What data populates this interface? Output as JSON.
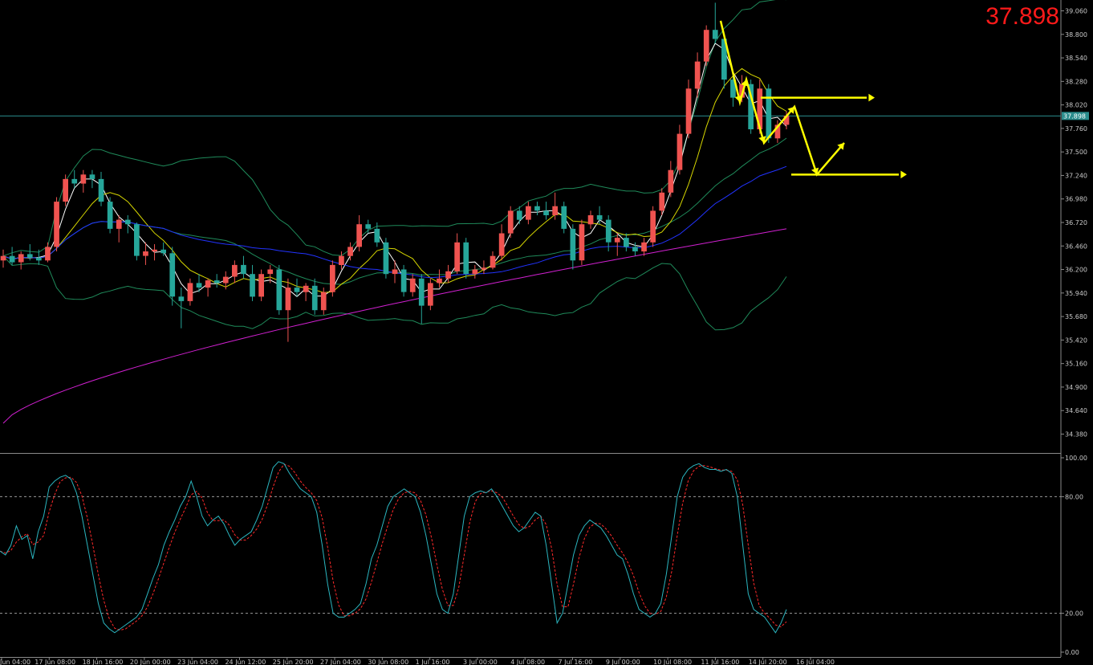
{
  "symbol_price": "37.898",
  "colors": {
    "background": "#000000",
    "bull_candle": "#ef5350",
    "bear_candle": "#26a69a",
    "bollinger": "#1f8a5a",
    "ma_fast": "#ffffff",
    "ma_mid": "#d6d600",
    "ma_blue": "#2233ff",
    "ma_magenta": "#d020d0",
    "stoch_main": "#2bb6c0",
    "stoch_signal": "#ff2a2a",
    "annotation": "#ffff00",
    "price_line": "#2a8c8c"
  },
  "chart_data": [
    {
      "type": "candlestick",
      "price_label": "37.898",
      "current_price": 37.898,
      "ylim": [
        34.18,
        39.18
      ],
      "y_ticks": [
        "39.060",
        "38.800",
        "38.540",
        "38.280",
        "38.020",
        "37.760",
        "37.500",
        "37.240",
        "36.980",
        "36.720",
        "36.460",
        "36.200",
        "35.940",
        "35.680",
        "35.420",
        "35.160",
        "34.900",
        "34.640",
        "34.380"
      ],
      "x_ticks": [
        "Jun 04:00",
        "17 Jun 08:00",
        "18 Jun 16:00",
        "20 Jun 00:00",
        "23 Jun 04:00",
        "24 Jun 12:00",
        "25 Jun 20:00",
        "27 Jun 04:00",
        "30 Jun 08:00",
        "1 Jul 16:00",
        "3 Jul 00:00",
        "4 Jul 08:00",
        "7 Jul 16:00",
        "9 Jul 00:00",
        "10 Jul 08:00",
        "11 Jul 16:00",
        "14 Jul 20:00",
        "16 Jul 04:00"
      ],
      "bars": [
        {
          "o": 36.3,
          "h": 36.42,
          "l": 36.22,
          "c": 36.35
        },
        {
          "o": 36.35,
          "h": 36.45,
          "l": 36.25,
          "c": 36.28
        },
        {
          "o": 36.28,
          "h": 36.4,
          "l": 36.2,
          "c": 36.37
        },
        {
          "o": 36.37,
          "h": 36.48,
          "l": 36.3,
          "c": 36.33
        },
        {
          "o": 36.33,
          "h": 36.42,
          "l": 36.25,
          "c": 36.3
        },
        {
          "o": 36.3,
          "h": 36.5,
          "l": 36.28,
          "c": 36.45
        },
        {
          "o": 36.45,
          "h": 37.0,
          "l": 36.4,
          "c": 36.95
        },
        {
          "o": 36.95,
          "h": 37.25,
          "l": 36.9,
          "c": 37.2
        },
        {
          "o": 37.2,
          "h": 37.3,
          "l": 37.1,
          "c": 37.15
        },
        {
          "o": 37.15,
          "h": 37.3,
          "l": 37.05,
          "c": 37.25
        },
        {
          "o": 37.25,
          "h": 37.3,
          "l": 37.1,
          "c": 37.2
        },
        {
          "o": 37.2,
          "h": 37.28,
          "l": 36.9,
          "c": 36.95
        },
        {
          "o": 36.95,
          "h": 37.0,
          "l": 36.6,
          "c": 36.65
        },
        {
          "o": 36.65,
          "h": 36.8,
          "l": 36.5,
          "c": 36.75
        },
        {
          "o": 36.75,
          "h": 36.8,
          "l": 36.6,
          "c": 36.7
        },
        {
          "o": 36.7,
          "h": 36.72,
          "l": 36.3,
          "c": 36.35
        },
        {
          "o": 36.35,
          "h": 36.5,
          "l": 36.25,
          "c": 36.4
        },
        {
          "o": 36.4,
          "h": 36.48,
          "l": 36.3,
          "c": 36.42
        },
        {
          "o": 36.42,
          "h": 36.5,
          "l": 36.35,
          "c": 36.38
        },
        {
          "o": 36.38,
          "h": 36.45,
          "l": 35.8,
          "c": 35.9
        },
        {
          "o": 35.9,
          "h": 36.0,
          "l": 35.55,
          "c": 35.85
        },
        {
          "o": 35.85,
          "h": 36.1,
          "l": 35.8,
          "c": 36.05
        },
        {
          "o": 36.05,
          "h": 36.15,
          "l": 35.95,
          "c": 36.0
        },
        {
          "o": 36.0,
          "h": 36.1,
          "l": 35.9,
          "c": 36.08
        },
        {
          "o": 36.08,
          "h": 36.15,
          "l": 36.0,
          "c": 36.05
        },
        {
          "o": 36.05,
          "h": 36.18,
          "l": 35.98,
          "c": 36.12
        },
        {
          "o": 36.12,
          "h": 36.3,
          "l": 36.05,
          "c": 36.25
        },
        {
          "o": 36.25,
          "h": 36.35,
          "l": 36.1,
          "c": 36.15
        },
        {
          "o": 36.15,
          "h": 36.25,
          "l": 35.85,
          "c": 35.9
        },
        {
          "o": 35.9,
          "h": 36.2,
          "l": 35.85,
          "c": 36.15
        },
        {
          "o": 36.15,
          "h": 36.25,
          "l": 36.05,
          "c": 36.2
        },
        {
          "o": 36.2,
          "h": 36.25,
          "l": 35.7,
          "c": 35.75
        },
        {
          "o": 35.75,
          "h": 36.1,
          "l": 35.4,
          "c": 36.0
        },
        {
          "o": 36.0,
          "h": 36.1,
          "l": 35.9,
          "c": 35.95
        },
        {
          "o": 35.95,
          "h": 36.05,
          "l": 35.85,
          "c": 36.02
        },
        {
          "o": 36.02,
          "h": 36.1,
          "l": 35.7,
          "c": 35.75
        },
        {
          "o": 35.75,
          "h": 36.0,
          "l": 35.7,
          "c": 35.95
        },
        {
          "o": 35.95,
          "h": 36.3,
          "l": 35.9,
          "c": 36.25
        },
        {
          "o": 36.25,
          "h": 36.4,
          "l": 36.2,
          "c": 36.35
        },
        {
          "o": 36.35,
          "h": 36.5,
          "l": 36.3,
          "c": 36.45
        },
        {
          "o": 36.45,
          "h": 36.8,
          "l": 36.4,
          "c": 36.7
        },
        {
          "o": 36.7,
          "h": 36.75,
          "l": 36.6,
          "c": 36.65
        },
        {
          "o": 36.65,
          "h": 36.72,
          "l": 36.45,
          "c": 36.5
        },
        {
          "o": 36.5,
          "h": 36.55,
          "l": 36.1,
          "c": 36.15
        },
        {
          "o": 36.15,
          "h": 36.3,
          "l": 36.05,
          "c": 36.2
        },
        {
          "o": 36.2,
          "h": 36.25,
          "l": 35.9,
          "c": 35.95
        },
        {
          "o": 35.95,
          "h": 36.15,
          "l": 35.9,
          "c": 36.1
        },
        {
          "o": 36.1,
          "h": 36.15,
          "l": 35.6,
          "c": 35.8
        },
        {
          "o": 35.8,
          "h": 36.1,
          "l": 35.75,
          "c": 36.05
        },
        {
          "o": 36.05,
          "h": 36.2,
          "l": 36.0,
          "c": 36.1
        },
        {
          "o": 36.1,
          "h": 36.25,
          "l": 36.05,
          "c": 36.18
        },
        {
          "o": 36.18,
          "h": 36.6,
          "l": 36.15,
          "c": 36.5
        },
        {
          "o": 36.5,
          "h": 36.55,
          "l": 36.1,
          "c": 36.15
        },
        {
          "o": 36.15,
          "h": 36.25,
          "l": 36.1,
          "c": 36.2
        },
        {
          "o": 36.2,
          "h": 36.3,
          "l": 36.15,
          "c": 36.22
        },
        {
          "o": 36.22,
          "h": 36.4,
          "l": 36.2,
          "c": 36.35
        },
        {
          "o": 36.35,
          "h": 36.7,
          "l": 36.3,
          "c": 36.6
        },
        {
          "o": 36.6,
          "h": 36.9,
          "l": 36.55,
          "c": 36.85
        },
        {
          "o": 36.85,
          "h": 36.9,
          "l": 36.7,
          "c": 36.75
        },
        {
          "o": 36.75,
          "h": 36.95,
          "l": 36.7,
          "c": 36.9
        },
        {
          "o": 36.9,
          "h": 36.95,
          "l": 36.8,
          "c": 36.85
        },
        {
          "o": 36.85,
          "h": 36.95,
          "l": 36.75,
          "c": 36.8
        },
        {
          "o": 36.8,
          "h": 37.05,
          "l": 36.75,
          "c": 36.9
        },
        {
          "o": 36.9,
          "h": 36.95,
          "l": 36.6,
          "c": 36.65
        },
        {
          "o": 36.65,
          "h": 36.7,
          "l": 36.2,
          "c": 36.3
        },
        {
          "o": 36.3,
          "h": 36.75,
          "l": 36.25,
          "c": 36.7
        },
        {
          "o": 36.7,
          "h": 36.85,
          "l": 36.65,
          "c": 36.8
        },
        {
          "o": 36.8,
          "h": 36.9,
          "l": 36.7,
          "c": 36.75
        },
        {
          "o": 36.75,
          "h": 36.8,
          "l": 36.4,
          "c": 36.5
        },
        {
          "o": 36.5,
          "h": 36.6,
          "l": 36.35,
          "c": 36.55
        },
        {
          "o": 36.55,
          "h": 36.6,
          "l": 36.4,
          "c": 36.45
        },
        {
          "o": 36.45,
          "h": 36.5,
          "l": 36.35,
          "c": 36.4
        },
        {
          "o": 36.4,
          "h": 36.55,
          "l": 36.35,
          "c": 36.5
        },
        {
          "o": 36.5,
          "h": 36.9,
          "l": 36.45,
          "c": 36.85
        },
        {
          "o": 36.85,
          "h": 37.1,
          "l": 36.8,
          "c": 37.05
        },
        {
          "o": 37.05,
          "h": 37.4,
          "l": 37.0,
          "c": 37.3
        },
        {
          "o": 37.3,
          "h": 37.8,
          "l": 37.25,
          "c": 37.7
        },
        {
          "o": 37.7,
          "h": 38.3,
          "l": 37.65,
          "c": 38.2
        },
        {
          "o": 38.2,
          "h": 38.6,
          "l": 38.1,
          "c": 38.5
        },
        {
          "o": 38.5,
          "h": 38.9,
          "l": 38.45,
          "c": 38.85
        },
        {
          "o": 38.85,
          "h": 39.15,
          "l": 38.7,
          "c": 38.75
        },
        {
          "o": 38.75,
          "h": 38.8,
          "l": 38.2,
          "c": 38.3
        },
        {
          "o": 38.3,
          "h": 38.35,
          "l": 38.0,
          "c": 38.1
        },
        {
          "o": 38.1,
          "h": 38.35,
          "l": 38.05,
          "c": 38.25
        },
        {
          "o": 38.25,
          "h": 38.3,
          "l": 37.7,
          "c": 37.75
        },
        {
          "o": 37.75,
          "h": 38.3,
          "l": 37.7,
          "c": 38.2
        },
        {
          "o": 38.2,
          "h": 38.25,
          "l": 37.6,
          "c": 37.65
        },
        {
          "o": 37.65,
          "h": 37.85,
          "l": 37.6,
          "c": 37.8
        },
        {
          "o": 37.8,
          "h": 37.95,
          "l": 37.75,
          "c": 37.9
        }
      ],
      "annotations": {
        "zigzag": [
          [
            38.95,
            0
          ],
          [
            38.05,
            1
          ],
          [
            38.3,
            2
          ],
          [
            37.6,
            3
          ],
          [
            38.0,
            4
          ],
          [
            37.25,
            5
          ],
          [
            37.6,
            6
          ]
        ],
        "resistance_level": 38.1,
        "support_level": 37.25
      }
    },
    {
      "type": "line",
      "name": "stochastic",
      "ylim": [
        0,
        100
      ],
      "y_ticks": [
        "100.00",
        "80.00",
        "20.00",
        "0.00"
      ],
      "levels": [
        80,
        20
      ],
      "main": [
        52,
        50,
        55,
        65,
        58,
        60,
        48,
        62,
        70,
        85,
        88,
        90,
        91,
        89,
        82,
        70,
        55,
        40,
        25,
        15,
        12,
        10,
        12,
        14,
        16,
        18,
        22,
        30,
        38,
        45,
        55,
        62,
        68,
        75,
        80,
        88,
        80,
        70,
        65,
        68,
        70,
        66,
        60,
        55,
        58,
        60,
        62,
        68,
        75,
        85,
        95,
        98,
        97,
        92,
        88,
        84,
        82,
        80,
        72,
        55,
        35,
        20,
        18,
        18,
        20,
        22,
        25,
        35,
        48,
        55,
        65,
        75,
        80,
        82,
        84,
        82,
        80,
        72,
        60,
        45,
        30,
        22,
        20,
        30,
        50,
        70,
        80,
        82,
        83,
        82,
        84,
        80,
        75,
        70,
        65,
        62,
        64,
        68,
        72,
        70,
        55,
        35,
        15,
        20,
        35,
        50,
        60,
        65,
        68,
        66,
        64,
        60,
        55,
        50,
        48,
        40,
        30,
        22,
        20,
        18,
        20,
        25,
        40,
        60,
        80,
        90,
        94,
        96,
        97,
        95,
        94,
        94,
        93,
        94,
        92,
        80,
        55,
        30,
        22,
        20,
        18,
        14,
        10,
        15,
        22
      ]
    }
  ]
}
